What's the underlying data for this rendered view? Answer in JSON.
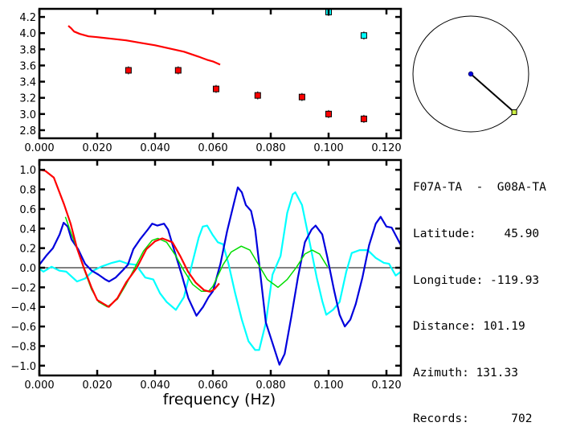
{
  "colors": {
    "red": "#ff0000",
    "blue": "#0000dd",
    "cyan": "#00ffff",
    "green": "#00dd00",
    "axis": "#000000",
    "station_marker": "#ccee44"
  },
  "station": {
    "pair": "F07A-TA  -  G08A-TA",
    "latitude_label": "Latitude:",
    "latitude": "45.90",
    "longitude_label": "Longitude:",
    "longitude": "-119.93",
    "distance_label": "Distance:",
    "distance": "101.19",
    "azimuth_label": "Azimuth:",
    "azimuth": "131.33",
    "records_label": "Records:",
    "records": "702"
  },
  "azimuth_map": {
    "azimuth_deg": 131.33
  },
  "chart_data": [
    {
      "type": "scatter",
      "title": "",
      "xlabel": "",
      "ylabel": "",
      "xlim": [
        0,
        0.125
      ],
      "ylim": [
        2.7,
        4.3
      ],
      "xticks": [
        "0.000",
        "0.020",
        "0.040",
        "0.060",
        "0.080",
        "0.100",
        "0.120"
      ],
      "yticks": [
        "2.8",
        "3.0",
        "3.2",
        "3.4",
        "3.6",
        "3.8",
        "4.0",
        "4.2"
      ],
      "grid": false,
      "series": [
        {
          "kind": "line",
          "color": "red",
          "x": [
            0.01,
            0.011,
            0.012,
            0.014,
            0.017,
            0.02,
            0.025,
            0.03,
            0.035,
            0.04,
            0.045,
            0.05,
            0.055,
            0.058,
            0.06,
            0.0625
          ],
          "y": [
            4.09,
            4.06,
            4.02,
            3.99,
            3.96,
            3.95,
            3.93,
            3.91,
            3.88,
            3.85,
            3.81,
            3.77,
            3.71,
            3.67,
            3.65,
            3.61
          ]
        },
        {
          "kind": "points",
          "color": "red",
          "x": [
            0.0308,
            0.048,
            0.0611,
            0.0755,
            0.0908,
            0.1,
            0.1122
          ],
          "y": [
            3.54,
            3.54,
            3.31,
            3.23,
            3.21,
            3.0,
            2.94
          ]
        },
        {
          "kind": "points",
          "color": "cyan",
          "x": [
            0.1,
            0.1122
          ],
          "y": [
            4.26,
            3.97
          ]
        }
      ]
    },
    {
      "type": "line",
      "title": "",
      "xlabel": "frequency (Hz)",
      "ylabel": "",
      "xlim": [
        0,
        0.125
      ],
      "ylim": [
        -1.1,
        1.1
      ],
      "xticks": [
        "0.000",
        "0.020",
        "0.040",
        "0.060",
        "0.080",
        "0.100",
        "0.120"
      ],
      "yticks": [
        "-1.0",
        "-0.8",
        "-0.6",
        "-0.4",
        "-0.2",
        "0.0",
        "0.2",
        "0.4",
        "0.6",
        "0.8",
        "1.0"
      ],
      "grid": false,
      "zero_line": true,
      "series": [
        {
          "color": "cyan",
          "x": [
            0,
            0.0014,
            0.0042,
            0.007,
            0.0093,
            0.013,
            0.0158,
            0.0186,
            0.0213,
            0.0251,
            0.0278,
            0.0306,
            0.0334,
            0.0366,
            0.0394,
            0.0417,
            0.044,
            0.0472,
            0.05,
            0.0528,
            0.0551,
            0.0565,
            0.058,
            0.0598,
            0.0617,
            0.0635,
            0.0654,
            0.0677,
            0.07,
            0.0723,
            0.0746,
            0.076,
            0.0783,
            0.0806,
            0.0834,
            0.0857,
            0.0876,
            0.0885,
            0.0908,
            0.0931,
            0.0959,
            0.0978,
            0.0992,
            0.1015,
            0.1038,
            0.1061,
            0.108,
            0.1107,
            0.1135,
            0.1163,
            0.1191,
            0.1209,
            0.1232,
            0.125
          ],
          "y": [
            -0.01,
            -0.04,
            0.01,
            -0.03,
            -0.04,
            -0.14,
            -0.11,
            -0.03,
            0.01,
            0.05,
            0.07,
            0.04,
            0.03,
            -0.1,
            -0.12,
            -0.26,
            -0.35,
            -0.43,
            -0.3,
            0.04,
            0.31,
            0.42,
            0.43,
            0.34,
            0.26,
            0.24,
            0.04,
            -0.26,
            -0.53,
            -0.75,
            -0.84,
            -0.84,
            -0.56,
            -0.07,
            0.12,
            0.56,
            0.75,
            0.77,
            0.64,
            0.31,
            -0.1,
            -0.34,
            -0.48,
            -0.43,
            -0.35,
            -0.04,
            0.15,
            0.18,
            0.18,
            0.1,
            0.05,
            0.04,
            -0.08,
            -0.04
          ]
        },
        {
          "color": "blue",
          "x": [
            0,
            0.0023,
            0.0047,
            0.007,
            0.0084,
            0.0098,
            0.0111,
            0.0134,
            0.0158,
            0.0181,
            0.0204,
            0.0228,
            0.0241,
            0.0264,
            0.0287,
            0.0306,
            0.0325,
            0.0348,
            0.0375,
            0.039,
            0.0408,
            0.0431,
            0.0445,
            0.0464,
            0.0492,
            0.0515,
            0.0543,
            0.0566,
            0.0585,
            0.06,
            0.0626,
            0.0649,
            0.0672,
            0.0686,
            0.07,
            0.0714,
            0.0732,
            0.0746,
            0.076,
            0.0783,
            0.0806,
            0.083,
            0.0848,
            0.0871,
            0.0894,
            0.0918,
            0.0941,
            0.0955,
            0.0978,
            0.0996,
            0.1019,
            0.1038,
            0.1056,
            0.1075,
            0.1094,
            0.1117,
            0.114,
            0.1163,
            0.118,
            0.12,
            0.1218,
            0.125
          ],
          "y": [
            0.03,
            0.12,
            0.2,
            0.34,
            0.46,
            0.42,
            0.29,
            0.19,
            0.04,
            -0.03,
            -0.07,
            -0.12,
            -0.14,
            -0.1,
            -0.03,
            0.03,
            0.19,
            0.29,
            0.39,
            0.45,
            0.43,
            0.45,
            0.39,
            0.2,
            -0.07,
            -0.31,
            -0.49,
            -0.4,
            -0.3,
            -0.24,
            0.04,
            0.37,
            0.65,
            0.82,
            0.77,
            0.64,
            0.58,
            0.39,
            0.04,
            -0.56,
            -0.77,
            -0.99,
            -0.88,
            -0.5,
            -0.1,
            0.26,
            0.39,
            0.43,
            0.34,
            0.1,
            -0.23,
            -0.48,
            -0.6,
            -0.53,
            -0.37,
            -0.1,
            0.23,
            0.45,
            0.52,
            0.42,
            0.41,
            0.23
          ]
        },
        {
          "color": "green",
          "x": [
            0.009,
            0.011,
            0.013,
            0.0155,
            0.018,
            0.0205,
            0.0235,
            0.027,
            0.03,
            0.033,
            0.036,
            0.039,
            0.041,
            0.044,
            0.047,
            0.05,
            0.053,
            0.056,
            0.0585,
            0.06,
            0.0635,
            0.0663,
            0.0698,
            0.0728,
            0.0756,
            0.0788,
            0.0825,
            0.0857,
            0.089,
            0.0918,
            0.0943,
            0.0969,
            0.0996
          ],
          "y": [
            0.52,
            0.35,
            0.2,
            -0.02,
            -0.22,
            -0.35,
            -0.4,
            -0.32,
            -0.17,
            0.0,
            0.17,
            0.28,
            0.3,
            0.26,
            0.13,
            -0.03,
            -0.17,
            -0.24,
            -0.24,
            -0.19,
            0.03,
            0.16,
            0.22,
            0.18,
            0.04,
            -0.12,
            -0.2,
            -0.12,
            0.01,
            0.14,
            0.18,
            0.14,
            0.01
          ]
        },
        {
          "color": "red",
          "x": [
            0,
            0.002,
            0.005,
            0.0085,
            0.0108,
            0.013,
            0.0155,
            0.018,
            0.02,
            0.024,
            0.027,
            0.03,
            0.0337,
            0.037,
            0.04,
            0.0425,
            0.046,
            0.0487,
            0.0514,
            0.054,
            0.057,
            0.059,
            0.0605,
            0.0622
          ],
          "y": [
            1.0,
            0.99,
            0.92,
            0.65,
            0.45,
            0.2,
            -0.01,
            -0.2,
            -0.33,
            -0.4,
            -0.31,
            -0.15,
            0.0,
            0.19,
            0.27,
            0.3,
            0.26,
            0.12,
            -0.04,
            -0.15,
            -0.23,
            -0.245,
            -0.22,
            -0.16
          ]
        }
      ]
    }
  ]
}
